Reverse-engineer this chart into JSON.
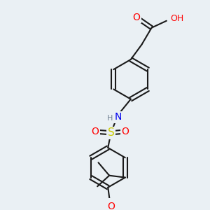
{
  "background_color": "#eaf0f4",
  "bond_color": "#1a1a1a",
  "bond_lw": 1.5,
  "atom_colors": {
    "O": "#ff0000",
    "N": "#0000ee",
    "S": "#cccc00",
    "H": "#708090",
    "C": "#1a1a1a"
  },
  "font_size": 9
}
